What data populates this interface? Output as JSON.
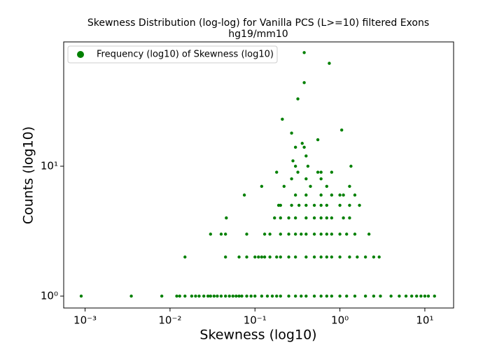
{
  "chart_data": {
    "type": "scatter",
    "title": "Skewness Distribution (log-log) for Vanilla PCS (L>=10) filtered Exons",
    "subtitle": "hg19/mm10",
    "x_label": "Skewness (log10)",
    "y_label": "Counts (log10)",
    "xscale": "log",
    "yscale": "log",
    "xlim": [
      0.00056,
      21.8
    ],
    "ylim": [
      0.81,
      90.6
    ],
    "xticks": [
      {
        "value": 0.001,
        "label": "10⁻³"
      },
      {
        "value": 0.01,
        "label": "10⁻²"
      },
      {
        "value": 0.1,
        "label": "10⁻¹"
      },
      {
        "value": 1,
        "label": "10⁰"
      },
      {
        "value": 10,
        "label": "10¹"
      }
    ],
    "yticks": [
      {
        "value": 1,
        "label": "10⁰"
      },
      {
        "value": 10,
        "label": "10¹"
      }
    ],
    "legend": "upper left",
    "series": [
      {
        "name": "Frequency (log10) of Skewness (log10)",
        "color": "#008000",
        "x": [
          0.0009,
          0.0035,
          0.008,
          0.012,
          0.013,
          0.015,
          0.018,
          0.02,
          0.022,
          0.025,
          0.028,
          0.03,
          0.033,
          0.036,
          0.04,
          0.045,
          0.05,
          0.055,
          0.06,
          0.065,
          0.07,
          0.08,
          0.09,
          0.1,
          0.12,
          0.14,
          0.16,
          0.18,
          0.2,
          0.25,
          0.3,
          0.35,
          0.4,
          0.5,
          0.6,
          0.7,
          0.8,
          1,
          1.2,
          1.5,
          2,
          2.5,
          3,
          4,
          5,
          6,
          7,
          8,
          9,
          10,
          11,
          13,
          0.015,
          0.045,
          0.065,
          0.08,
          0.1,
          0.11,
          0.12,
          0.13,
          0.15,
          0.18,
          0.2,
          0.25,
          0.3,
          0.4,
          0.5,
          0.6,
          0.7,
          0.8,
          1,
          1.3,
          1.6,
          2,
          2.5,
          2.9,
          0.03,
          0.04,
          0.045,
          0.08,
          0.13,
          0.15,
          0.2,
          0.25,
          0.3,
          0.35,
          0.4,
          0.5,
          0.6,
          0.7,
          0.8,
          1,
          1.2,
          1.5,
          2.2,
          0.046,
          0.17,
          0.2,
          0.25,
          0.3,
          0.4,
          0.5,
          0.6,
          0.7,
          0.8,
          1.1,
          1.3,
          0.19,
          0.2,
          0.27,
          0.33,
          0.4,
          0.5,
          0.6,
          0.7,
          1,
          1.3,
          1.7,
          0.075,
          0.3,
          0.4,
          0.6,
          0.8,
          1,
          1.1,
          1.5,
          0.12,
          0.22,
          0.45,
          0.7,
          1.3,
          0.27,
          0.4,
          0.6,
          0.18,
          0.32,
          0.55,
          0.6,
          0.8,
          0.3,
          0.42,
          1.35,
          0.28,
          0.4,
          0.3,
          0.38,
          0.36,
          0.55,
          0.27,
          1.05,
          0.21,
          0.32,
          0.38,
          0.75,
          0.38
        ],
        "values": [
          1,
          1,
          1,
          1,
          1,
          1,
          1,
          1,
          1,
          1,
          1,
          1,
          1,
          1,
          1,
          1,
          1,
          1,
          1,
          1,
          1,
          1,
          1,
          1,
          1,
          1,
          1,
          1,
          1,
          1,
          1,
          1,
          1,
          1,
          1,
          1,
          1,
          1,
          1,
          1,
          1,
          1,
          1,
          1,
          1,
          1,
          1,
          1,
          1,
          1,
          1,
          1,
          2,
          2,
          2,
          2,
          2,
          2,
          2,
          2,
          2,
          2,
          2,
          2,
          2,
          2,
          2,
          2,
          2,
          2,
          2,
          2,
          2,
          2,
          2,
          2,
          3,
          3,
          3,
          3,
          3,
          3,
          3,
          3,
          3,
          3,
          3,
          3,
          3,
          3,
          3,
          3,
          3,
          3,
          3,
          4,
          4,
          4,
          4,
          4,
          4,
          4,
          4,
          4,
          4,
          4,
          4,
          5,
          5,
          5,
          5,
          5,
          5,
          5,
          5,
          5,
          5,
          5,
          6,
          6,
          6,
          6,
          6,
          6,
          6,
          6,
          7,
          7,
          7,
          7,
          7,
          8,
          8,
          8,
          9,
          9,
          9,
          9,
          9,
          10,
          10,
          10,
          11,
          12,
          14,
          14,
          15,
          16,
          18,
          19,
          23,
          33,
          44,
          62,
          75
        ]
      }
    ]
  }
}
